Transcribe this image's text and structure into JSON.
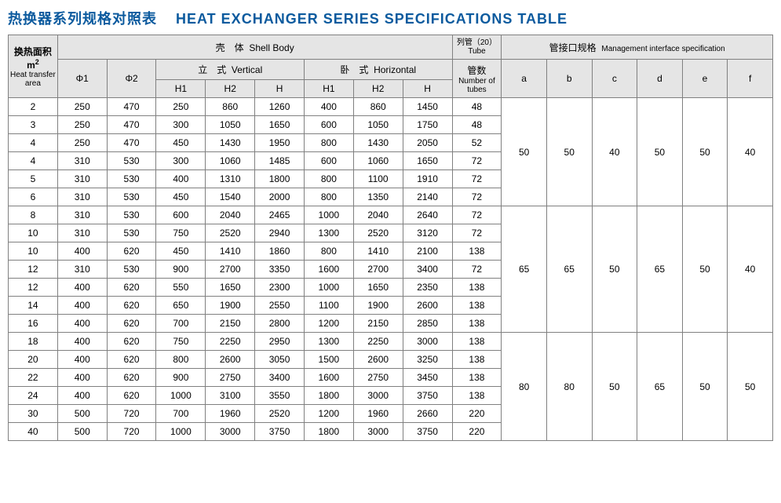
{
  "title_cn": "热换器系列规格对照表",
  "title_en": "HEAT EXCHANGER SERIES SPECIFICATIONS TABLE",
  "title_color": "#0b5a9e",
  "border_color": "#808080",
  "header_bg": "#e5e5e5",
  "columns": {
    "heat_area_cn": "换热面积",
    "heat_area_unit": "m",
    "heat_area_en": "Heat transfer area",
    "shell_cn": "壳　体",
    "shell_en": "Shell Body",
    "vertical_cn": "立　式",
    "vertical_en": "Vertical",
    "horizontal_cn": "卧　式",
    "horizontal_en": "Horizontal",
    "phi1": "Φ1",
    "phi2": "Φ2",
    "H1": "H1",
    "H2": "H2",
    "H": "H",
    "tube_cn": "列管（20）",
    "tube_en": "Tube",
    "tubes_cn": "管数",
    "tubes_en": "Number of tubes",
    "mis_cn": "管接口规格",
    "mis_en": "Management interface specification",
    "a": "a",
    "b": "b",
    "c": "c",
    "d": "d",
    "e": "e",
    "f": "f"
  },
  "rows": [
    {
      "area": "2",
      "phi1": "250",
      "phi2": "470",
      "vH1": "250",
      "vH2": "860",
      "vH": "1260",
      "hH1": "400",
      "hH2": "860",
      "hH": "1450",
      "tubes": "48"
    },
    {
      "area": "3",
      "phi1": "250",
      "phi2": "470",
      "vH1": "300",
      "vH2": "1050",
      "vH": "1650",
      "hH1": "600",
      "hH2": "1050",
      "hH": "1750",
      "tubes": "48"
    },
    {
      "area": "4",
      "phi1": "250",
      "phi2": "470",
      "vH1": "450",
      "vH2": "1430",
      "vH": "1950",
      "hH1": "800",
      "hH2": "1430",
      "hH": "2050",
      "tubes": "52"
    },
    {
      "area": "4",
      "phi1": "310",
      "phi2": "530",
      "vH1": "300",
      "vH2": "1060",
      "vH": "1485",
      "hH1": "600",
      "hH2": "1060",
      "hH": "1650",
      "tubes": "72"
    },
    {
      "area": "5",
      "phi1": "310",
      "phi2": "530",
      "vH1": "400",
      "vH2": "1310",
      "vH": "1800",
      "hH1": "800",
      "hH2": "1100",
      "hH": "1910",
      "tubes": "72"
    },
    {
      "area": "6",
      "phi1": "310",
      "phi2": "530",
      "vH1": "450",
      "vH2": "1540",
      "vH": "2000",
      "hH1": "800",
      "hH2": "1350",
      "hH": "2140",
      "tubes": "72"
    },
    {
      "area": "8",
      "phi1": "310",
      "phi2": "530",
      "vH1": "600",
      "vH2": "2040",
      "vH": "2465",
      "hH1": "1000",
      "hH2": "2040",
      "hH": "2640",
      "tubes": "72"
    },
    {
      "area": "10",
      "phi1": "310",
      "phi2": "530",
      "vH1": "750",
      "vH2": "2520",
      "vH": "2940",
      "hH1": "1300",
      "hH2": "2520",
      "hH": "3120",
      "tubes": "72"
    },
    {
      "area": "10",
      "phi1": "400",
      "phi2": "620",
      "vH1": "450",
      "vH2": "1410",
      "vH": "1860",
      "hH1": "800",
      "hH2": "1410",
      "hH": "2100",
      "tubes": "138"
    },
    {
      "area": "12",
      "phi1": "310",
      "phi2": "530",
      "vH1": "900",
      "vH2": "2700",
      "vH": "3350",
      "hH1": "1600",
      "hH2": "2700",
      "hH": "3400",
      "tubes": "72"
    },
    {
      "area": "12",
      "phi1": "400",
      "phi2": "620",
      "vH1": "550",
      "vH2": "1650",
      "vH": "2300",
      "hH1": "1000",
      "hH2": "1650",
      "hH": "2350",
      "tubes": "138"
    },
    {
      "area": "14",
      "phi1": "400",
      "phi2": "620",
      "vH1": "650",
      "vH2": "1900",
      "vH": "2550",
      "hH1": "1100",
      "hH2": "1900",
      "hH": "2600",
      "tubes": "138"
    },
    {
      "area": "16",
      "phi1": "400",
      "phi2": "620",
      "vH1": "700",
      "vH2": "2150",
      "vH": "2800",
      "hH1": "1200",
      "hH2": "2150",
      "hH": "2850",
      "tubes": "138"
    },
    {
      "area": "18",
      "phi1": "400",
      "phi2": "620",
      "vH1": "750",
      "vH2": "2250",
      "vH": "2950",
      "hH1": "1300",
      "hH2": "2250",
      "hH": "3000",
      "tubes": "138"
    },
    {
      "area": "20",
      "phi1": "400",
      "phi2": "620",
      "vH1": "800",
      "vH2": "2600",
      "vH": "3050",
      "hH1": "1500",
      "hH2": "2600",
      "hH": "3250",
      "tubes": "138"
    },
    {
      "area": "22",
      "phi1": "400",
      "phi2": "620",
      "vH1": "900",
      "vH2": "2750",
      "vH": "3400",
      "hH1": "1600",
      "hH2": "2750",
      "hH": "3450",
      "tubes": "138"
    },
    {
      "area": "24",
      "phi1": "400",
      "phi2": "620",
      "vH1": "1000",
      "vH2": "3100",
      "vH": "3550",
      "hH1": "1800",
      "hH2": "3000",
      "hH": "3750",
      "tubes": "138"
    },
    {
      "area": "30",
      "phi1": "500",
      "phi2": "720",
      "vH1": "700",
      "vH2": "1960",
      "vH": "2520",
      "hH1": "1200",
      "hH2": "1960",
      "hH": "2660",
      "tubes": "220"
    },
    {
      "area": "40",
      "phi1": "500",
      "phi2": "720",
      "vH1": "1000",
      "vH2": "3000",
      "vH": "3750",
      "hH1": "1800",
      "hH2": "3000",
      "hH": "3750",
      "tubes": "220"
    }
  ],
  "mis_groups": [
    {
      "rows": 6,
      "a": "50",
      "b": "50",
      "c": "40",
      "d": "50",
      "e": "50",
      "f": "40"
    },
    {
      "rows": 7,
      "a": "65",
      "b": "65",
      "c": "50",
      "d": "65",
      "e": "50",
      "f": "40"
    },
    {
      "rows": 6,
      "a": "80",
      "b": "80",
      "c": "50",
      "d": "65",
      "e": "50",
      "f": "50"
    }
  ],
  "col_widths": {
    "area": 60,
    "phi1": 60,
    "phi2": 60,
    "vH1": 60,
    "vH2": 60,
    "vH": 60,
    "hH1": 60,
    "hH2": 60,
    "hH": 60,
    "tubes": 60,
    "a": 55,
    "b": 55,
    "c": 55,
    "d": 55,
    "e": 55,
    "f": 55
  }
}
